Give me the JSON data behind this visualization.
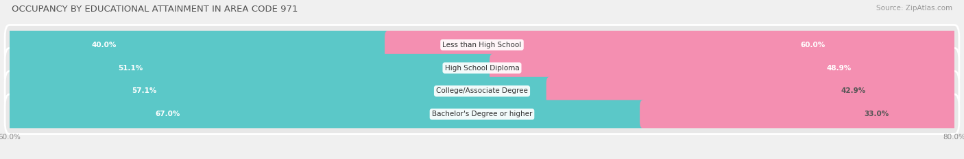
{
  "title": "OCCUPANCY BY EDUCATIONAL ATTAINMENT IN AREA CODE 971",
  "source": "Source: ZipAtlas.com",
  "categories": [
    "Less than High School",
    "High School Diploma",
    "College/Associate Degree",
    "Bachelor's Degree or higher"
  ],
  "owner_values": [
    40.0,
    51.1,
    57.1,
    67.0
  ],
  "renter_values": [
    60.0,
    48.9,
    42.9,
    33.0
  ],
  "owner_color": "#5BC8C8",
  "renter_color": "#F48FB1",
  "bar_height": 0.62,
  "x_left_label": "60.0%",
  "x_right_label": "80.0%",
  "title_fontsize": 9.5,
  "source_fontsize": 7.5,
  "cat_fontsize": 7.5,
  "val_fontsize": 7.5,
  "tick_fontsize": 7.5,
  "legend_fontsize": 7.5,
  "background_color": "#f0f0f0",
  "bar_bg_color": "#e0e0e0",
  "row_bg_color": "#e8e8e8",
  "bar_total": 100.0,
  "total_width": 100.0
}
